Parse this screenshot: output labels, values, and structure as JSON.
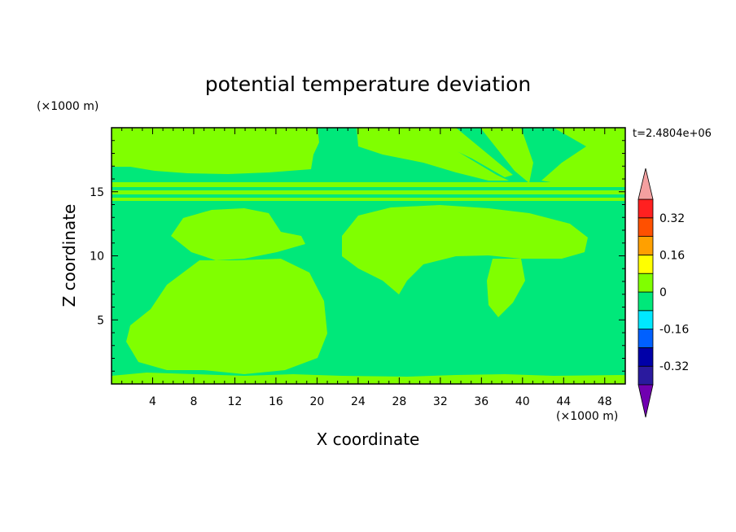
{
  "chart_data": {
    "type": "heatmap",
    "title": "potential temperature deviation",
    "xlabel": "X coordinate",
    "ylabel": "Z coordinate",
    "x_unit": "(×1000 m)",
    "y_unit": "(×1000 m)",
    "time_label": "t=2.4804e+06",
    "xlim": [
      0,
      50
    ],
    "ylim": [
      0,
      20
    ],
    "x_ticks": [
      4,
      8,
      12,
      16,
      20,
      24,
      28,
      32,
      36,
      40,
      44,
      48
    ],
    "y_ticks": [
      5,
      10,
      15
    ],
    "colorbar": {
      "levels": [
        -0.4,
        -0.32,
        -0.24,
        -0.16,
        -0.08,
        0,
        0.08,
        0.16,
        0.24,
        0.32,
        0.4
      ],
      "labels": [
        "0.32",
        "0.16",
        "0",
        "-0.16",
        "-0.32"
      ],
      "label_values": [
        0.32,
        0.16,
        0,
        -0.16,
        -0.32
      ],
      "colors": [
        "#2a1a9e",
        "#0000a8",
        "#0060ff",
        "#00e8ff",
        "#00e87a",
        "#80ff00",
        "#ffff00",
        "#ffa000",
        "#ff5000",
        "#ff2020"
      ],
      "under_color": "#7000b0",
      "over_color": "#f4a0a0"
    },
    "field_background_color": "#00e87a",
    "field_positive_color": "#80ff00"
  }
}
